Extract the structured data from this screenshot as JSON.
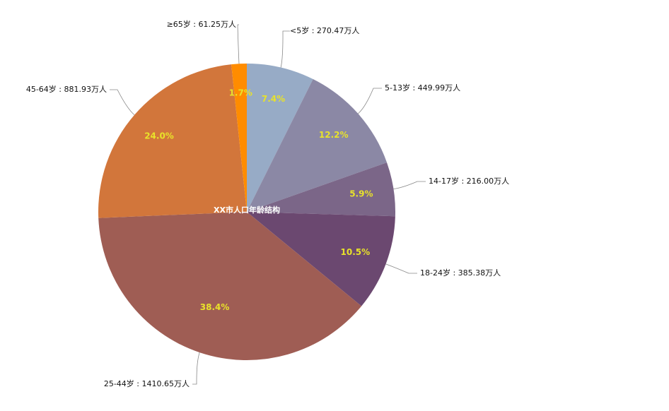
{
  "chart_data": {
    "type": "pie",
    "title": "XX市人口年龄结构",
    "slices": [
      {
        "name": "<5岁",
        "value": 270.47,
        "percent_label": "7.4%",
        "outer_label": "<5岁 : 270.47万人",
        "color": "#97abc6"
      },
      {
        "name": "5-13岁",
        "value": 449.99,
        "percent_label": "12.2%",
        "outer_label": "5-13岁 : 449.99万人",
        "color": "#8b88a5"
      },
      {
        "name": "14-17岁",
        "value": 216.0,
        "percent_label": "5.9%",
        "outer_label": "14-17岁 : 216.00万人",
        "color": "#7b6688"
      },
      {
        "name": "18-24岁",
        "value": 385.38,
        "percent_label": "10.5%",
        "outer_label": "18-24岁 : 385.38万人",
        "color": "#6b4870"
      },
      {
        "name": "25-44岁",
        "value": 1410.65,
        "percent_label": "38.4%",
        "outer_label": "25-44岁 : 1410.65万人",
        "color": "#9f5d54"
      },
      {
        "name": "45-64岁",
        "value": 881.93,
        "percent_label": "24.0%",
        "outer_label": "45-64岁 : 881.93万人",
        "color": "#d2763b"
      },
      {
        "name": "≥65岁",
        "value": 61.25,
        "percent_label": "1.7%",
        "outer_label": "≥65岁 : 61.25万人",
        "color": "#ff8c00"
      }
    ],
    "percent_label_color": "#e8e22a",
    "label_line_color": "#888888"
  }
}
